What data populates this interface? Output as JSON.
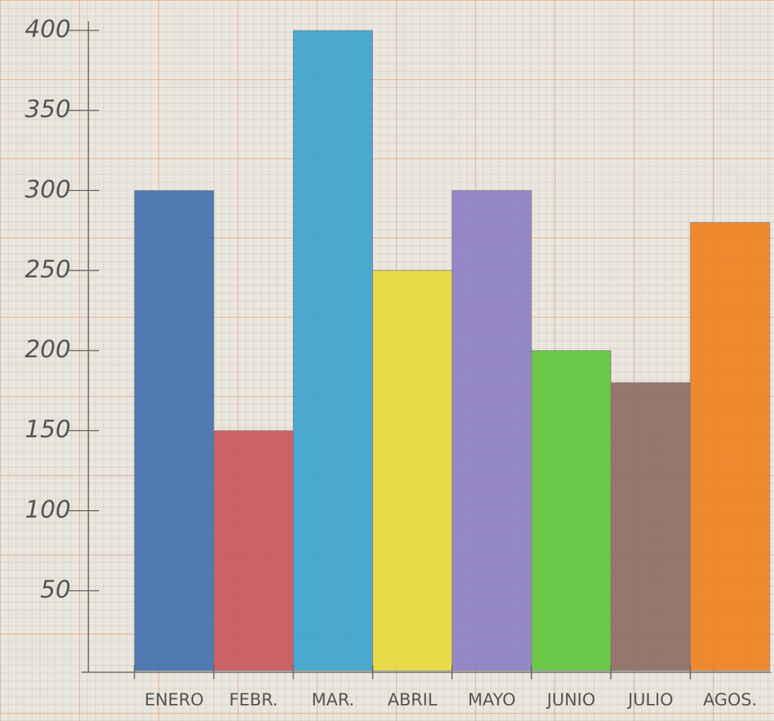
{
  "chart_data": {
    "type": "bar",
    "categories": [
      "ENERO",
      "FEBR.",
      "MAR.",
      "ABRIL",
      "MAYO",
      "JUNIO",
      "JULIO",
      "AGOS."
    ],
    "values": [
      300,
      150,
      400,
      250,
      300,
      200,
      180,
      280
    ],
    "colors": [
      "#3f6fae",
      "#c8545a",
      "#3aa3cc",
      "#ead93a",
      "#8d7ec4",
      "#5fc53a",
      "#8e6c62",
      "#f07f1e"
    ],
    "ylim": [
      0,
      400
    ],
    "yticks": [
      50,
      100,
      150,
      200,
      250,
      300,
      350,
      400
    ]
  }
}
